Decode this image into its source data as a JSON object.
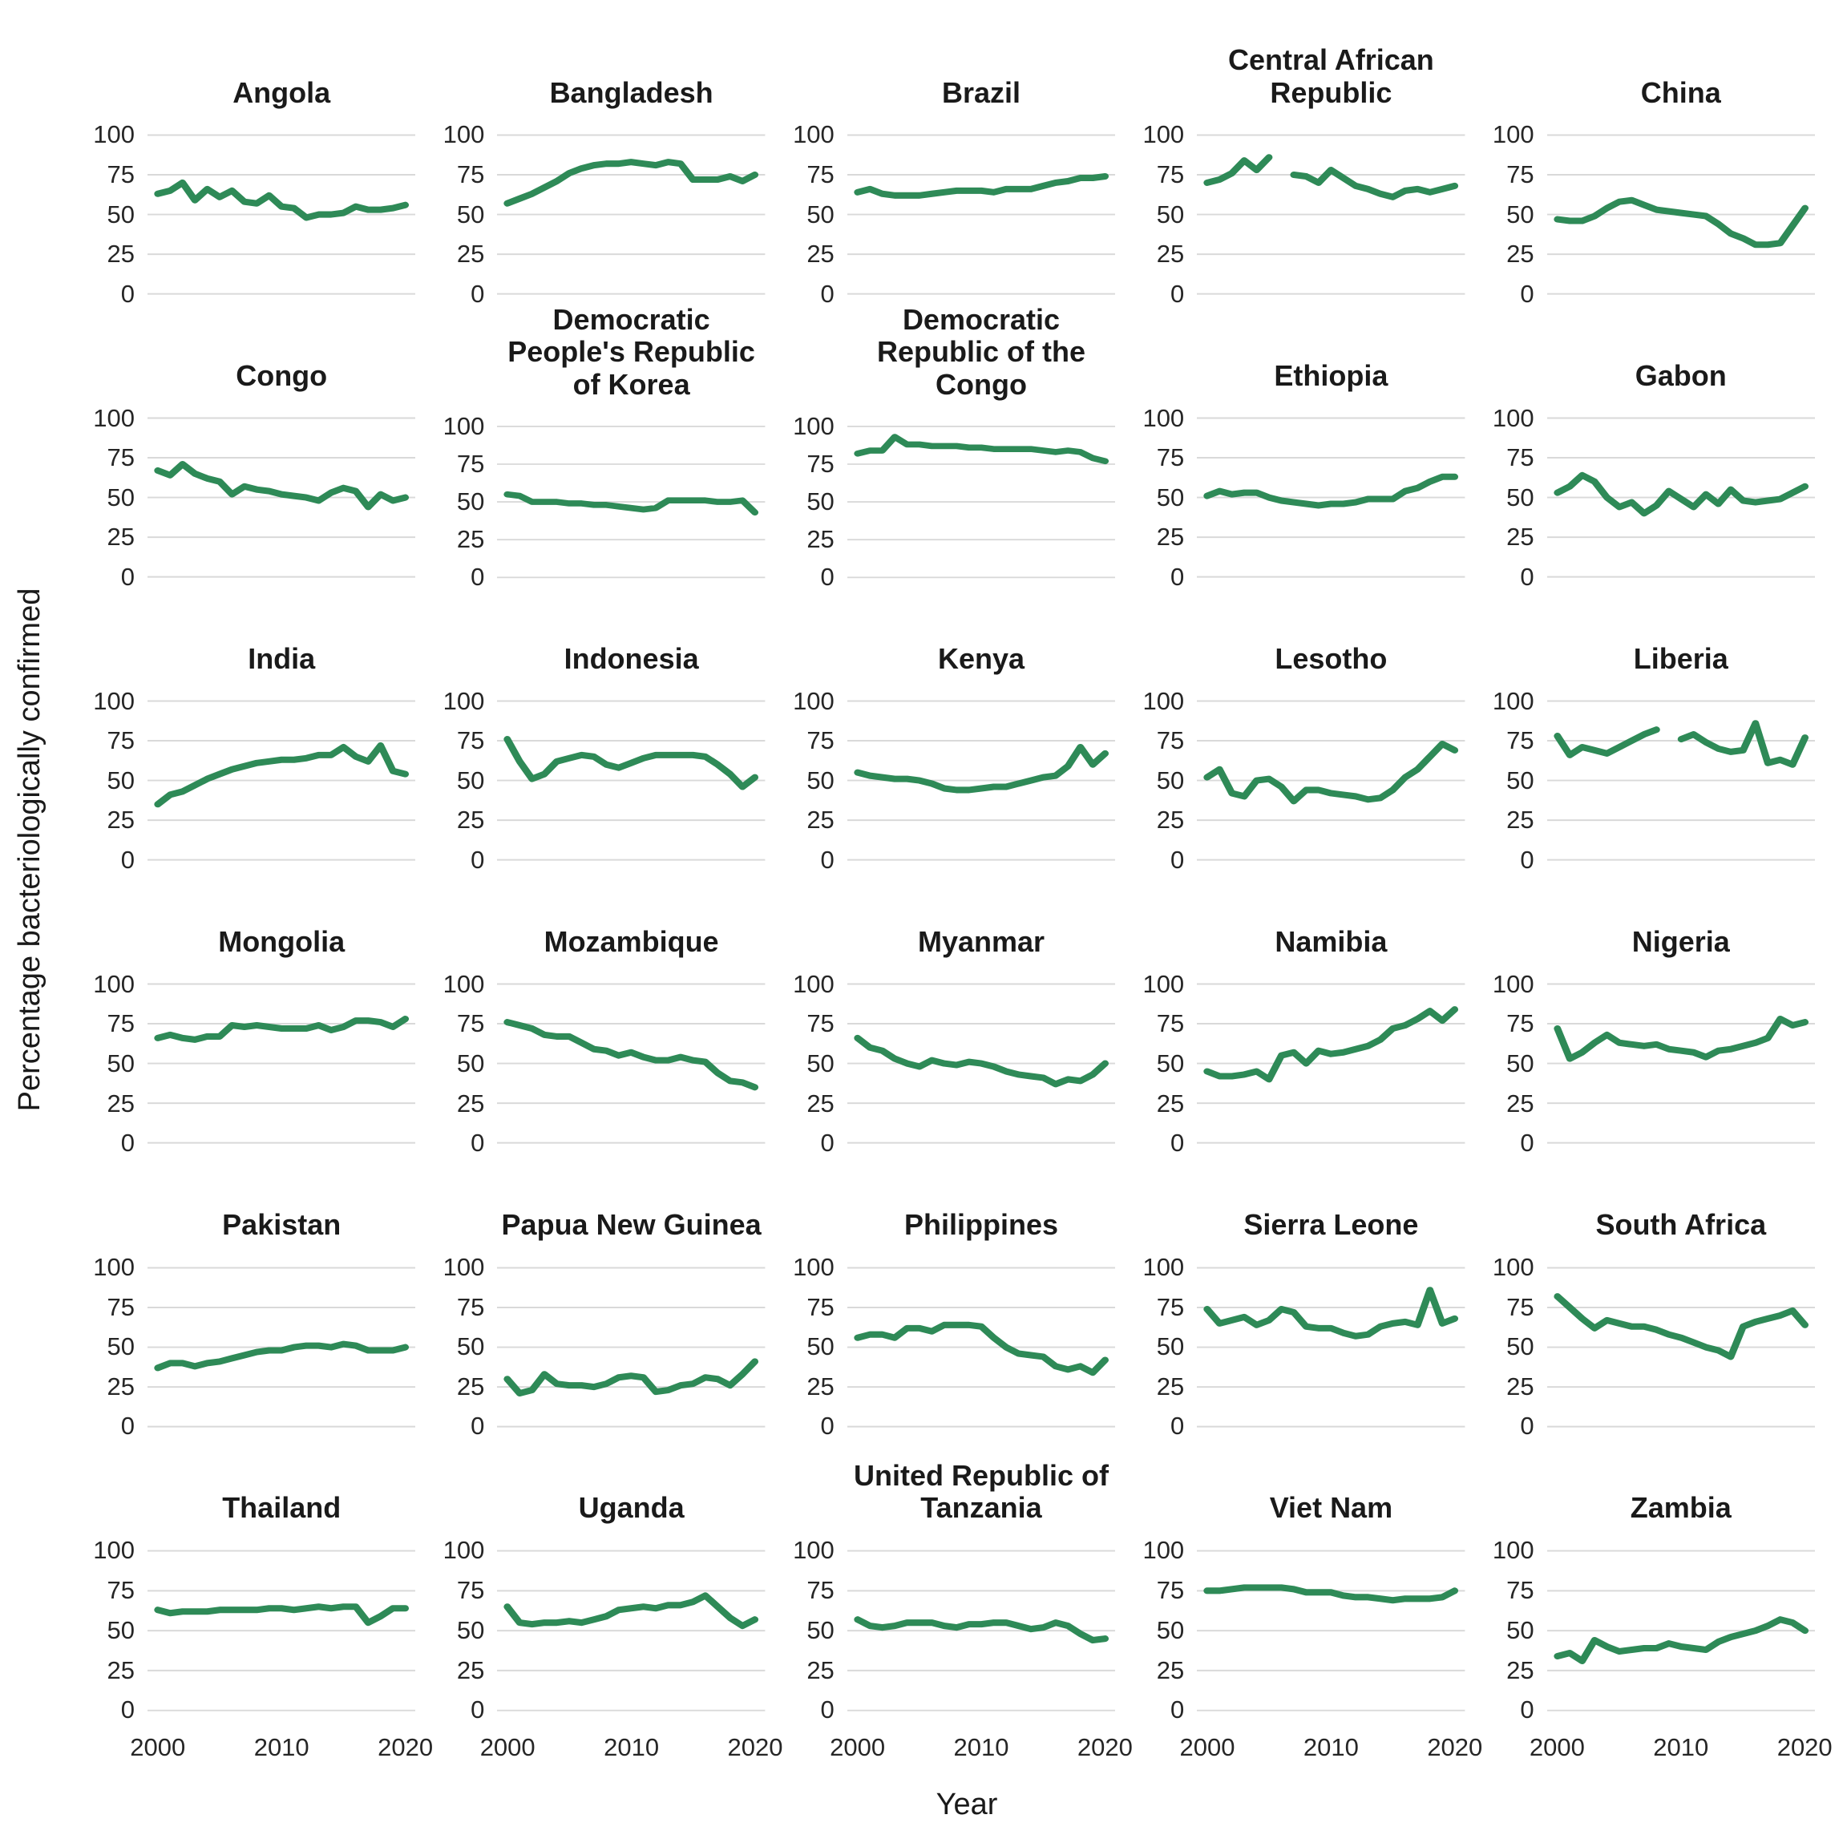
{
  "chart_data": {
    "type": "line",
    "xlabel": "Year",
    "ylabel": "Percentage bacteriologically confirmed",
    "x": [
      2000,
      2001,
      2002,
      2003,
      2004,
      2005,
      2006,
      2007,
      2008,
      2009,
      2010,
      2011,
      2012,
      2013,
      2014,
      2015,
      2016,
      2017,
      2018,
      2019,
      2020
    ],
    "x_ticks": [
      2000,
      2010,
      2020
    ],
    "y_ticks": [
      0,
      25,
      50,
      75,
      100
    ],
    "ylim": [
      0,
      100
    ],
    "grid": "horizontal-only",
    "legend": "none",
    "line_color": "#2e8a57",
    "facets": [
      {
        "name": "Angola",
        "values": [
          63,
          65,
          70,
          59,
          66,
          61,
          65,
          58,
          57,
          62,
          55,
          54,
          48,
          50,
          50,
          51,
          55,
          53,
          53,
          54,
          56
        ]
      },
      {
        "name": "Bangladesh",
        "values": [
          57,
          60,
          63,
          67,
          71,
          76,
          79,
          81,
          82,
          82,
          83,
          82,
          81,
          83,
          82,
          72,
          72,
          72,
          74,
          71,
          75
        ]
      },
      {
        "name": "Brazil",
        "values": [
          64,
          66,
          63,
          62,
          62,
          62,
          63,
          64,
          65,
          65,
          65,
          64,
          66,
          66,
          66,
          68,
          70,
          71,
          73,
          73,
          74
        ]
      },
      {
        "name": "Central African Republic",
        "values": [
          70,
          72,
          76,
          84,
          78,
          86,
          null,
          75,
          74,
          70,
          78,
          73,
          68,
          66,
          63,
          61,
          65,
          66,
          64,
          66,
          68
        ]
      },
      {
        "name": "China",
        "values": [
          47,
          46,
          46,
          49,
          54,
          58,
          59,
          56,
          53,
          52,
          51,
          50,
          49,
          44,
          38,
          35,
          31,
          31,
          32,
          43,
          54
        ]
      },
      {
        "name": "Congo",
        "values": [
          67,
          64,
          71,
          65,
          62,
          60,
          52,
          57,
          55,
          54,
          52,
          51,
          50,
          48,
          53,
          56,
          54,
          44,
          52,
          48,
          50
        ]
      },
      {
        "name": "Democratic People's Republic of Korea",
        "values": [
          55,
          54,
          50,
          50,
          50,
          49,
          49,
          48,
          48,
          47,
          46,
          45,
          46,
          51,
          51,
          51,
          51,
          50,
          50,
          51,
          43
        ]
      },
      {
        "name": "Democratic Republic of the Congo",
        "values": [
          82,
          84,
          84,
          93,
          88,
          88,
          87,
          87,
          87,
          86,
          86,
          85,
          85,
          85,
          85,
          84,
          83,
          84,
          83,
          79,
          77
        ]
      },
      {
        "name": "Ethiopia",
        "values": [
          51,
          54,
          52,
          53,
          53,
          50,
          48,
          47,
          46,
          45,
          46,
          46,
          47,
          49,
          49,
          49,
          54,
          56,
          60,
          63,
          63
        ]
      },
      {
        "name": "Gabon",
        "values": [
          53,
          57,
          64,
          60,
          50,
          44,
          47,
          40,
          45,
          54,
          49,
          44,
          52,
          46,
          55,
          48,
          47,
          48,
          49,
          53,
          57
        ]
      },
      {
        "name": "India",
        "values": [
          35,
          41,
          43,
          47,
          51,
          54,
          57,
          59,
          61,
          62,
          63,
          63,
          64,
          66,
          66,
          71,
          65,
          62,
          72,
          56,
          54
        ]
      },
      {
        "name": "Indonesia",
        "values": [
          76,
          62,
          51,
          54,
          62,
          64,
          66,
          65,
          60,
          58,
          61,
          64,
          66,
          66,
          66,
          66,
          65,
          60,
          54,
          46,
          52
        ]
      },
      {
        "name": "Kenya",
        "values": [
          55,
          53,
          52,
          51,
          51,
          50,
          48,
          45,
          44,
          44,
          45,
          46,
          46,
          48,
          50,
          52,
          53,
          59,
          71,
          60,
          67
        ]
      },
      {
        "name": "Lesotho",
        "values": [
          52,
          57,
          42,
          40,
          50,
          51,
          46,
          37,
          44,
          44,
          42,
          41,
          40,
          38,
          39,
          44,
          52,
          57,
          65,
          73,
          69
        ]
      },
      {
        "name": "Liberia",
        "values": [
          78,
          66,
          71,
          69,
          67,
          71,
          75,
          79,
          82,
          null,
          76,
          79,
          74,
          70,
          68,
          69,
          86,
          61,
          63,
          60,
          77
        ]
      },
      {
        "name": "Mongolia",
        "values": [
          66,
          68,
          66,
          65,
          67,
          67,
          74,
          73,
          74,
          73,
          72,
          72,
          72,
          74,
          71,
          73,
          77,
          77,
          76,
          73,
          78
        ]
      },
      {
        "name": "Mozambique",
        "values": [
          76,
          74,
          72,
          68,
          67,
          67,
          63,
          59,
          58,
          55,
          57,
          54,
          52,
          52,
          54,
          52,
          51,
          44,
          39,
          38,
          35
        ]
      },
      {
        "name": "Myanmar",
        "values": [
          66,
          60,
          58,
          53,
          50,
          48,
          52,
          50,
          49,
          51,
          50,
          48,
          45,
          43,
          42,
          41,
          37,
          40,
          39,
          43,
          50
        ]
      },
      {
        "name": "Namibia",
        "values": [
          45,
          42,
          42,
          43,
          45,
          40,
          55,
          57,
          50,
          58,
          56,
          57,
          59,
          61,
          65,
          72,
          74,
          78,
          83,
          77,
          84
        ]
      },
      {
        "name": "Nigeria",
        "values": [
          72,
          53,
          57,
          63,
          68,
          63,
          62,
          61,
          62,
          59,
          58,
          57,
          54,
          58,
          59,
          61,
          63,
          66,
          78,
          74,
          76
        ]
      },
      {
        "name": "Pakistan",
        "values": [
          37,
          40,
          40,
          38,
          40,
          41,
          43,
          45,
          47,
          48,
          48,
          50,
          51,
          51,
          50,
          52,
          51,
          48,
          48,
          48,
          50
        ]
      },
      {
        "name": "Papua New Guinea",
        "values": [
          30,
          21,
          23,
          33,
          27,
          26,
          26,
          25,
          27,
          31,
          32,
          31,
          22,
          23,
          26,
          27,
          31,
          30,
          26,
          33,
          41
        ]
      },
      {
        "name": "Philippines",
        "values": [
          56,
          58,
          58,
          56,
          62,
          62,
          60,
          64,
          64,
          64,
          63,
          56,
          50,
          46,
          45,
          44,
          38,
          36,
          38,
          34,
          42
        ]
      },
      {
        "name": "Sierra Leone",
        "values": [
          74,
          65,
          67,
          69,
          64,
          67,
          74,
          72,
          63,
          62,
          62,
          59,
          57,
          58,
          63,
          65,
          66,
          64,
          86,
          65,
          68
        ]
      },
      {
        "name": "South Africa",
        "values": [
          82,
          75,
          68,
          62,
          67,
          65,
          63,
          63,
          61,
          58,
          56,
          53,
          50,
          48,
          44,
          63,
          66,
          68,
          70,
          73,
          64
        ]
      },
      {
        "name": "Thailand",
        "values": [
          63,
          61,
          62,
          62,
          62,
          63,
          63,
          63,
          63,
          64,
          64,
          63,
          64,
          65,
          64,
          65,
          65,
          55,
          59,
          64,
          64
        ]
      },
      {
        "name": "Uganda",
        "values": [
          65,
          55,
          54,
          55,
          55,
          56,
          55,
          57,
          59,
          63,
          64,
          65,
          64,
          66,
          66,
          68,
          72,
          65,
          58,
          53,
          57
        ]
      },
      {
        "name": "United Republic of Tanzania",
        "values": [
          57,
          53,
          52,
          53,
          55,
          55,
          55,
          53,
          52,
          54,
          54,
          55,
          55,
          53,
          51,
          52,
          55,
          53,
          48,
          44,
          45
        ]
      },
      {
        "name": "Viet Nam",
        "values": [
          75,
          75,
          76,
          77,
          77,
          77,
          77,
          76,
          74,
          74,
          74,
          72,
          71,
          71,
          70,
          69,
          70,
          70,
          70,
          71,
          75
        ]
      },
      {
        "name": "Zambia",
        "values": [
          34,
          36,
          31,
          44,
          40,
          37,
          38,
          39,
          39,
          42,
          40,
          39,
          38,
          43,
          46,
          48,
          50,
          53,
          57,
          55,
          50
        ]
      }
    ]
  }
}
